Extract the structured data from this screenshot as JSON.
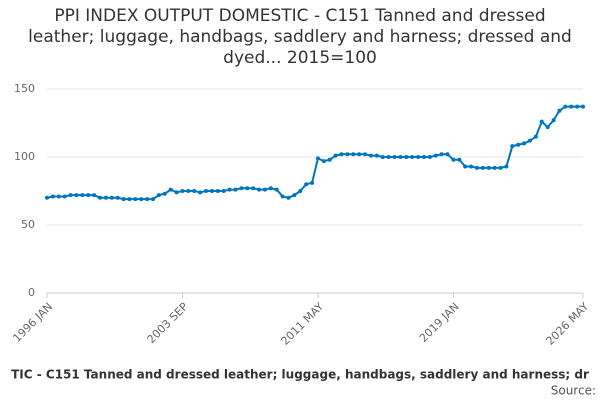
{
  "chart_data": {
    "type": "line",
    "title": "PPI INDEX OUTPUT DOMESTIC - C151 Tanned and dressed leather; luggage, handbags, saddlery and harness; dressed and dyed... 2015=100",
    "legend_text": "TIC - C151 Tanned and dressed leather; luggage, handbags, saddlery and harness; dr",
    "source": "Source:",
    "categories": [
      "1996 JAN",
      null,
      null,
      null,
      null,
      null,
      null,
      null,
      null,
      null,
      null,
      null,
      null,
      null,
      null,
      null,
      null,
      null,
      null,
      null,
      null,
      null,
      null,
      "2003 SEP",
      null,
      null,
      null,
      null,
      null,
      null,
      null,
      null,
      null,
      null,
      null,
      null,
      null,
      null,
      null,
      null,
      null,
      null,
      null,
      null,
      null,
      null,
      "2011 MAY",
      null,
      null,
      null,
      null,
      null,
      null,
      null,
      null,
      null,
      null,
      null,
      null,
      null,
      null,
      null,
      null,
      null,
      null,
      null,
      null,
      null,
      null,
      "2019 JAN",
      null,
      null,
      null,
      null,
      null,
      null,
      null,
      null,
      null,
      null,
      null,
      null,
      null,
      null,
      null,
      null,
      null,
      null,
      null,
      null,
      null,
      "2026 MAY"
    ],
    "series": [
      {
        "color": "#0075bf",
        "values": [
          70,
          71,
          71,
          71,
          72,
          72,
          72,
          72,
          72,
          70,
          70,
          70,
          70,
          69,
          69,
          69,
          69,
          69,
          69,
          72,
          73,
          76,
          74,
          75,
          75,
          75,
          74,
          75,
          75,
          75,
          75,
          76,
          76,
          77,
          77,
          77,
          76,
          76,
          77,
          76,
          71,
          70,
          72,
          75,
          80,
          81,
          99,
          97,
          98,
          101,
          102,
          102,
          102,
          102,
          102,
          101,
          101,
          100,
          100,
          100,
          100,
          100,
          100,
          100,
          100,
          100,
          101,
          102,
          102,
          98,
          98,
          93,
          93,
          92,
          92,
          92,
          92,
          92,
          93,
          108,
          109,
          110,
          112,
          115,
          126,
          122,
          127,
          134,
          137,
          137,
          137,
          137
        ]
      }
    ],
    "ylim": [
      0,
      150
    ],
    "yticks": [
      0,
      50,
      100,
      150
    ],
    "grid": true
  }
}
